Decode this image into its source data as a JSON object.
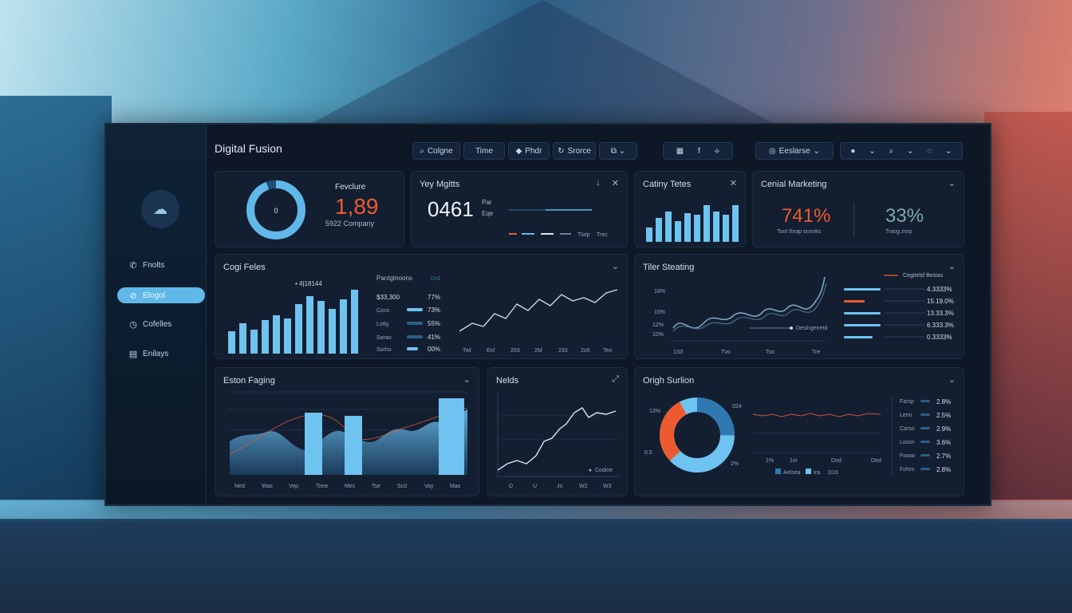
{
  "app": {
    "title": "Digital Fusion"
  },
  "sidebar": {
    "items": [
      {
        "label": "Fnolts",
        "icon": "phone-icon"
      },
      {
        "label": "Elogol",
        "icon": "tag-icon",
        "active": true
      },
      {
        "label": "Cofelles",
        "icon": "clock-icon"
      },
      {
        "label": "Enilays",
        "icon": "list-icon"
      }
    ]
  },
  "toolbar": {
    "left_buttons": [
      {
        "label": "Colgne",
        "icon": "search-icon"
      },
      {
        "label": "Time",
        "icon": ""
      },
      {
        "label": "Phdr",
        "icon": "pin-icon"
      },
      {
        "label": "Srorce",
        "icon": "refresh-icon"
      },
      {
        "label": "",
        "icon": "filter-icon"
      }
    ],
    "right_label": "Eeslarse"
  },
  "cards": {
    "feature": {
      "title": "Fevclure",
      "ring_label": "0",
      "value": "1,89",
      "sub": "5922 Company"
    },
    "key": {
      "title": "Yey Mgitts",
      "value": "0461",
      "side1": "Par",
      "side2": "Eqe",
      "legend1": "Tlotp",
      "legend2": "Trec"
    },
    "catty": {
      "title": "Catiny Tetes"
    },
    "cental": {
      "title": "Cenial Marketing",
      "v1": "741%",
      "v1_sub": "Toot thrap ouvoks",
      "v2": "33%",
      "v2_sub": "Traog zorp"
    },
    "cost": {
      "title": "Cogi Feles",
      "annotation": "• 4|18144",
      "list_header": "Pantgtnoons",
      "list_header2": "Drd",
      "rows": [
        {
          "label": "$33,300",
          "value": "77%"
        },
        {
          "label": "Cosn",
          "value": "73%"
        },
        {
          "label": "Lotlg",
          "value": "55%"
        },
        {
          "label": "Sarao",
          "value": "41%"
        },
        {
          "label": "Sorho",
          "value": "00%"
        }
      ],
      "x_labels": [
        "Twl",
        "Enl",
        "203",
        "2M",
        "233",
        "2o5",
        "Teo"
      ]
    },
    "tiler": {
      "title": "Tiler Steating",
      "y_labels": [
        "18%",
        "15%",
        "12%",
        "10%"
      ],
      "x_labels": [
        "1S0",
        "Tvo",
        "Tso",
        "Tre"
      ],
      "marker": "Deslngenetd",
      "legend_head": "Cegitelsf Besias",
      "rows": [
        "4.3333%",
        "15.19.0%",
        "13.33.3%",
        "6.333.3%",
        "0.3333%"
      ]
    },
    "eston": {
      "title": "Eston Faging",
      "x_labels": [
        "Ned",
        "Was",
        "Vep",
        "Time",
        "Mes",
        "Tse",
        "Scd",
        "Vay",
        "Mas"
      ]
    },
    "nelds": {
      "title": "Nelds",
      "legend": "Codine",
      "x_labels": [
        "D",
        "U",
        "Jo",
        "W2",
        "W3"
      ]
    },
    "origin": {
      "title": "Origh Surlion",
      "left_labels": [
        "13%",
        "0.5"
      ],
      "right_labels": [
        "024",
        "2%"
      ],
      "x_labels": [
        "1%",
        "1vt",
        "Dod",
        "Ded"
      ],
      "legend1": "Aelsea",
      "legend2": "Ira",
      "legend3": "D16",
      "rows": [
        {
          "label": "Farsp",
          "value": "2.8%"
        },
        {
          "label": "Leno",
          "value": "2.5%"
        },
        {
          "label": "Carso",
          "value": "2.9%"
        },
        {
          "label": "Lossn",
          "value": "3.6%"
        },
        {
          "label": "Fowar",
          "value": "2.7%"
        },
        {
          "label": "Fohro",
          "value": "2.8%"
        }
      ]
    }
  },
  "colors": {
    "accent": "#5fb8e8",
    "bar": "#6ec3f0",
    "orange": "#ee5a2f",
    "panel": "#131f31"
  }
}
